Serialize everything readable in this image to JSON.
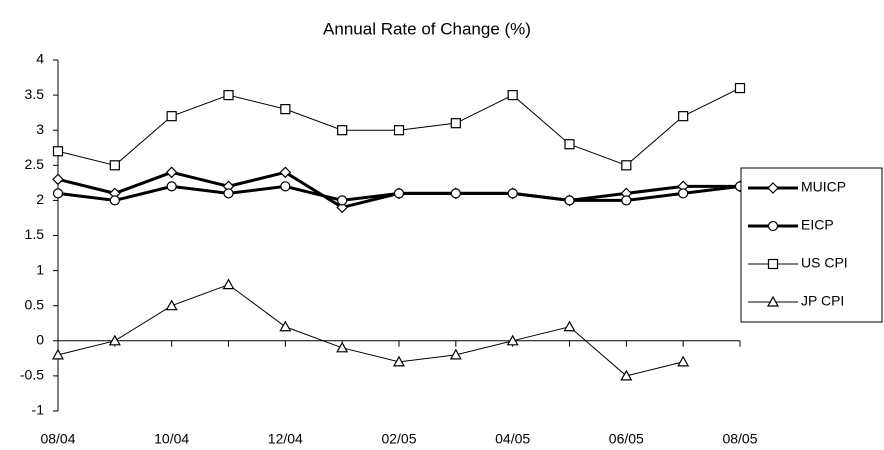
{
  "chart_data": {
    "type": "line",
    "title": "Annual Rate of Change (%)",
    "categories": [
      "08/04",
      null,
      "10/04",
      null,
      "12/04",
      null,
      "02/05",
      null,
      "04/05",
      null,
      "06/05",
      null,
      "08/05"
    ],
    "series": [
      {
        "name": "MUICP",
        "color": "#000000",
        "marker": "diamond",
        "width": 3,
        "values": [
          2.3,
          2.1,
          2.4,
          2.2,
          2.4,
          1.9,
          2.1,
          2.1,
          2.1,
          2.0,
          2.1,
          2.2,
          2.2
        ]
      },
      {
        "name": "EICP",
        "color": "#000000",
        "marker": "circle",
        "width": 3,
        "values": [
          2.1,
          2.0,
          2.2,
          2.1,
          2.2,
          2.0,
          2.1,
          2.1,
          2.1,
          2.0,
          2.0,
          2.1,
          2.2
        ]
      },
      {
        "name": "US CPI",
        "color": "#000000",
        "marker": "square",
        "width": 1,
        "values": [
          2.7,
          2.5,
          3.2,
          3.5,
          3.3,
          3.0,
          3.0,
          3.1,
          3.5,
          2.8,
          2.5,
          3.2,
          3.6
        ]
      },
      {
        "name": "JP CPI",
        "color": "#000000",
        "marker": "triangle",
        "width": 1,
        "values": [
          -0.2,
          0,
          0.5,
          0.8,
          0.2,
          -0.1,
          -0.3,
          -0.2,
          0,
          0.2,
          -0.5,
          -0.3,
          null
        ]
      }
    ],
    "ylim": [
      -1,
      4
    ],
    "yticks": [
      -1,
      -0.5,
      0,
      0.5,
      1,
      1.5,
      2,
      2.5,
      3,
      3.5,
      4
    ],
    "grid": false,
    "legend": "right"
  }
}
